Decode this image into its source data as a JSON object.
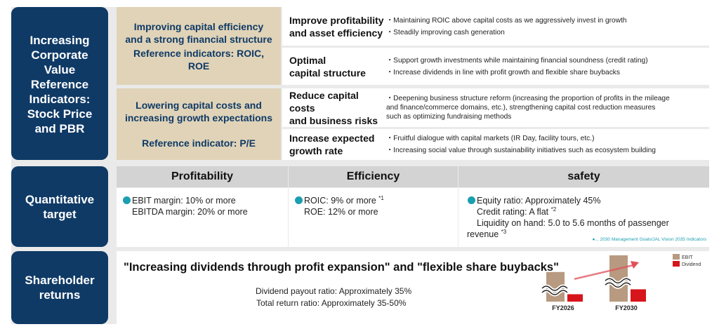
{
  "section_titles": {
    "value": [
      "Increasing",
      "Corporate",
      "Value",
      "Reference",
      "Indicators:",
      "Stock Price",
      "and PBR"
    ],
    "quant": [
      "Quantitative",
      "target"
    ],
    "returns": [
      "Shareholder",
      "returns"
    ]
  },
  "goals": [
    {
      "title": [
        "Improving capital efficiency",
        "and a strong financial structure"
      ],
      "reference": [
        "Reference indicators: ROIC,",
        "ROE"
      ]
    },
    {
      "title": [
        "Lowering capital costs and",
        "increasing growth expectations"
      ],
      "reference": [
        "Reference indicator: P/E"
      ]
    }
  ],
  "measures": [
    {
      "label": [
        "Improve profitability",
        "and asset efficiency"
      ],
      "items": [
        "・Maintaining ROIC above capital costs as we aggressively invest in growth",
        "・Steadily improving cash generation"
      ]
    },
    {
      "label": [
        "Optimal",
        "capital structure"
      ],
      "items": [
        "・Support growth investments while maintaining financial soundness (credit rating)",
        "・Increase dividends in line with profit growth and flexible share buybacks"
      ]
    },
    {
      "label": [
        "Reduce capital costs",
        "and business risks"
      ],
      "items": [
        "・Deepening business structure reform (increasing the proportion of profits in the mileage",
        "and  finance/commerce domains, etc.), strengthening capital cost reduction measures",
        "such as optimizing fundraising methods"
      ]
    },
    {
      "label": [
        "Increase expected",
        "growth rate"
      ],
      "items": [
        "・Fruitful  dialogue with capital markets (IR Day, facility tours, etc.)",
        "・Increasing social value through sustainability initiatives such as ecosystem building"
      ]
    }
  ],
  "quantitative": {
    "headers": [
      "Profitability",
      "Efficiency",
      "safety"
    ],
    "profitability": [
      "EBIT margin: 10% or more",
      "EBITDA margin: 20% or more"
    ],
    "efficiency": [
      {
        "text": "ROIC: 9% or more ",
        "note": "*1"
      },
      {
        "text": "ROE: 12% or more",
        "note": ""
      }
    ],
    "safety": [
      {
        "text": "Equity ratio: Approximately 45%",
        "note": ""
      },
      {
        "text": "Credit rating: A flat ",
        "note": "*2"
      },
      {
        "text": "Liquidity on hand: 5.0 to 5.6 months of passenger",
        "note": ""
      },
      {
        "text": "revenue ",
        "note": "*3"
      }
    ],
    "legend_note": "●... 2030 Management Goals/JAL Vision 2035 Indicators"
  },
  "returns": {
    "headline": "\"Increasing dividends through profit expansion\" and \"flexible share buybacks\"",
    "payout": "Dividend payout ratio: Approximately 35%",
    "total": "Total return ratio: Approximately 35-50%"
  },
  "chart_data": {
    "type": "bar",
    "categories": [
      "FY2026",
      "FY2030"
    ],
    "series": [
      {
        "name": "EBIT",
        "values": [
          48,
          75
        ]
      },
      {
        "name": "Dividend",
        "values": [
          12,
          20
        ]
      }
    ],
    "legend": [
      "EBIT",
      "Dividend"
    ],
    "legend_position": "top-right",
    "axis_break": true,
    "annotation": "upward arrow"
  },
  "colors": {
    "navy": "#0f3a66",
    "tan": "#e0d3b8",
    "teal": "#1a9fb0",
    "ebit": "#b89a80",
    "dividend": "#d6161c",
    "arrow": "#e0505a"
  }
}
